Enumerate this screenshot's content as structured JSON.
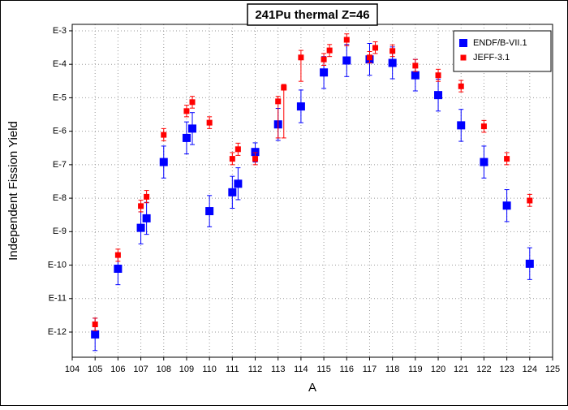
{
  "chart_data": {
    "type": "scatter",
    "title": "241Pu thermal Z=46",
    "x_label": "A",
    "y_label": "Independent Fission Yield",
    "log_y": true,
    "grid": true,
    "legend_position": "upper-right",
    "xlim": [
      104,
      125
    ],
    "xticks": [
      104,
      105,
      106,
      107,
      108,
      109,
      110,
      111,
      112,
      113,
      114,
      115,
      116,
      117,
      118,
      119,
      120,
      121,
      122,
      123,
      124,
      125
    ],
    "ylim": [
      1.77e-13,
      0.00156
    ],
    "yticks": [
      {
        "value": 1e-12,
        "label": "E-12"
      },
      {
        "value": 1e-11,
        "label": "E-11"
      },
      {
        "value": 1e-10,
        "label": "E-10"
      },
      {
        "value": 1e-09,
        "label": "E-9"
      },
      {
        "value": 1e-08,
        "label": "E-8"
      },
      {
        "value": 1e-07,
        "label": "E-7"
      },
      {
        "value": 1e-06,
        "label": "E-6"
      },
      {
        "value": 1e-05,
        "label": "E-5"
      },
      {
        "value": 0.0001,
        "label": "E-4"
      },
      {
        "value": 0.001,
        "label": "E-3"
      }
    ],
    "series": [
      {
        "name": "ENDF/B-VII.1",
        "color": "#0000ff",
        "x": [
          105,
          106,
          107,
          107.25,
          108,
          109,
          109.25,
          110,
          111,
          111.25,
          112,
          113,
          114,
          115,
          116,
          117,
          118,
          119,
          120,
          121,
          122,
          123,
          124
        ],
        "values": [
          8.5e-13,
          7.8e-11,
          1.3e-09,
          2.5e-09,
          1.2e-07,
          6.3e-07,
          1.2e-06,
          4.1e-09,
          1.5e-08,
          2.7e-08,
          2.4e-07,
          1.6e-06,
          5.5e-06,
          5.7e-05,
          0.00013,
          0.00014,
          0.00011,
          4.7e-05,
          1.2e-05,
          1.5e-06,
          1.2e-07,
          6e-09,
          1.1e-10
        ],
        "errors": [
          [
            2.8e-13,
            2.6e-12
          ],
          [
            2.6e-11,
            2.3e-10
          ],
          [
            4.3e-10,
            3.9e-09
          ],
          [
            8.3e-10,
            7.5e-09
          ],
          [
            4e-08,
            3.6e-07
          ],
          [
            2.1e-07,
            1.9e-06
          ],
          [
            4e-07,
            3.6e-06
          ],
          [
            1.4e-09,
            1.2e-08
          ],
          [
            5e-09,
            4.5e-08
          ],
          [
            9e-09,
            8.1e-08
          ],
          [
            1.2e-07,
            4.5e-07
          ],
          [
            5.3e-07,
            4.8e-06
          ],
          [
            1.8e-06,
            1.7e-05
          ],
          [
            1.9e-05,
            0.00017
          ],
          [
            4.3e-05,
            0.00039
          ],
          [
            4.7e-05,
            0.00042
          ],
          [
            3.7e-05,
            0.00033
          ],
          [
            1.6e-05,
            0.00014
          ],
          [
            4e-06,
            3.6e-05
          ],
          [
            5e-07,
            4.5e-06
          ],
          [
            4e-08,
            3.6e-07
          ],
          [
            2e-09,
            1.8e-08
          ],
          [
            3.7e-11,
            3.3e-10
          ]
        ]
      },
      {
        "name": "JEFF-3.1",
        "color": "#ff0000",
        "x": [
          105,
          106,
          107,
          107.25,
          108,
          109,
          109.25,
          110,
          111,
          111.25,
          112,
          113,
          113.25,
          114,
          115,
          115.25,
          116,
          117,
          117.25,
          118,
          119,
          120,
          121,
          122,
          123,
          124
        ],
        "values": [
          1.7e-12,
          2e-10,
          5.8e-09,
          1.1e-08,
          7.8e-07,
          4e-06,
          7.4e-06,
          1.8e-06,
          1.5e-07,
          2.9e-07,
          1.5e-07,
          7.8e-06,
          2e-05,
          0.00016,
          0.00014,
          0.00026,
          0.00054,
          0.00016,
          0.00031,
          0.00025,
          9.1e-05,
          4.7e-05,
          2.2e-05,
          1.4e-06,
          1.5e-07,
          8.5e-09
        ],
        "errors": [
          [
            1.1e-12,
            2.6e-12
          ],
          [
            1.3e-10,
            3e-10
          ],
          [
            3.9e-09,
            8.7e-09
          ],
          [
            7.3e-09,
            1.7e-08
          ],
          [
            5.2e-07,
            1.2e-06
          ],
          [
            2.7e-06,
            6e-06
          ],
          [
            4.9e-06,
            1.1e-05
          ],
          [
            1.2e-06,
            2.7e-06
          ],
          [
            1e-07,
            2.3e-07
          ],
          [
            1.9e-07,
            4.4e-07
          ],
          [
            1e-07,
            2.3e-07
          ],
          [
            6.3e-07,
            1.1e-05
          ],
          [
            6.3e-07,
            2.5e-05
          ],
          [
            3.1e-05,
            0.00026
          ],
          [
            9.3e-05,
            0.00021
          ],
          [
            0.00017,
            0.00039
          ],
          [
            0.00036,
            0.00081
          ],
          [
            0.00011,
            0.00024
          ],
          [
            0.00021,
            0.00047
          ],
          [
            0.00017,
            0.00038
          ],
          [
            6.1e-05,
            0.00014
          ],
          [
            3.1e-05,
            7.1e-05
          ],
          [
            1.5e-05,
            3.3e-05
          ],
          [
            9.3e-07,
            2.1e-06
          ],
          [
            1e-07,
            2.3e-07
          ],
          [
            5.7e-09,
            1.3e-08
          ]
        ]
      }
    ]
  }
}
